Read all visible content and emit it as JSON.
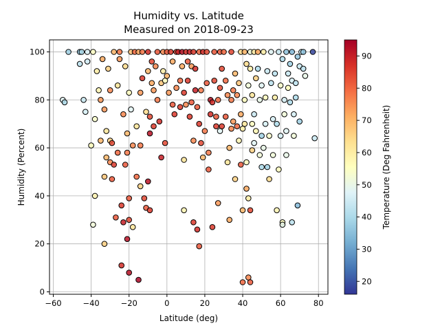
{
  "chart_data": {
    "type": "scatter",
    "title": "Humidity vs. Latitude",
    "subtitle": "Measured on 2018-09-23",
    "xlabel": "Latitude (deg)",
    "ylabel": "Humidity (Percent)",
    "xlim": [
      -62,
      85
    ],
    "ylim": [
      -1,
      105
    ],
    "xticks": [
      -60,
      -40,
      -20,
      0,
      20,
      40,
      60,
      80
    ],
    "yticks": [
      0,
      20,
      40,
      60,
      80,
      100
    ],
    "grid": true,
    "colorbar": {
      "label": "Temperature (Deg Fahrenheit)",
      "colormap": "RdYlBu_r",
      "range": [
        16,
        95
      ],
      "ticks": [
        20,
        30,
        40,
        50,
        60,
        70,
        80,
        90
      ]
    },
    "points": [
      [
        -55,
        80,
        48
      ],
      [
        -54,
        79,
        40
      ],
      [
        -52,
        100,
        38
      ],
      [
        -46,
        100,
        36
      ],
      [
        -46,
        95,
        42
      ],
      [
        -45,
        100,
        40
      ],
      [
        -44,
        80,
        44
      ],
      [
        -43,
        75,
        46
      ],
      [
        -42,
        96,
        45
      ],
      [
        -42,
        100,
        47
      ],
      [
        -40,
        61,
        56
      ],
      [
        -39,
        28,
        52
      ],
      [
        -39,
        100,
        55
      ],
      [
        -38,
        40,
        58
      ],
      [
        -38,
        72,
        54
      ],
      [
        -37,
        92,
        60
      ],
      [
        -36,
        84,
        58
      ],
      [
        -35,
        63,
        70
      ],
      [
        -35,
        80,
        74
      ],
      [
        -34,
        97,
        72
      ],
      [
        -33,
        20,
        66
      ],
      [
        -33,
        48,
        68
      ],
      [
        -33,
        76,
        74
      ],
      [
        -32,
        56,
        70
      ],
      [
        -32,
        67,
        62
      ],
      [
        -31,
        93,
        66
      ],
      [
        -30,
        54,
        76
      ],
      [
        -30,
        63,
        66
      ],
      [
        -30,
        84,
        76
      ],
      [
        -29,
        47,
        82
      ],
      [
        -29,
        62,
        84
      ],
      [
        -28,
        53,
        86
      ],
      [
        -28,
        100,
        70
      ],
      [
        -27,
        31,
        82
      ],
      [
        -26,
        58,
        80
      ],
      [
        -26,
        86,
        62
      ],
      [
        -25,
        97,
        74
      ],
      [
        -25,
        100,
        78
      ],
      [
        -24,
        36,
        86
      ],
      [
        -24,
        11,
        88
      ],
      [
        -23,
        29,
        90
      ],
      [
        -23,
        74,
        76
      ],
      [
        -22,
        53,
        82
      ],
      [
        -22,
        94,
        64
      ],
      [
        -21,
        22,
        92
      ],
      [
        -21,
        58,
        78
      ],
      [
        -21,
        66,
        70
      ],
      [
        -20,
        30,
        84
      ],
      [
        -20,
        8,
        92
      ],
      [
        -20,
        39,
        82
      ],
      [
        -20,
        83,
        56
      ],
      [
        -19,
        76,
        48
      ],
      [
        -19,
        100,
        68
      ],
      [
        -18,
        61,
        76
      ],
      [
        -18,
        27,
        62
      ],
      [
        -17,
        100,
        80
      ],
      [
        -16,
        48,
        80
      ],
      [
        -16,
        69,
        62
      ],
      [
        -15,
        100,
        72
      ],
      [
        -15,
        5,
        94
      ],
      [
        -14,
        44,
        66
      ],
      [
        -14,
        61,
        78
      ],
      [
        -14,
        83,
        74
      ],
      [
        -13,
        89,
        86
      ],
      [
        -13,
        100,
        78
      ],
      [
        -12,
        39,
        84
      ],
      [
        -11,
        35,
        82
      ],
      [
        -11,
        75,
        64
      ],
      [
        -10,
        46,
        92
      ],
      [
        -10,
        92,
        70
      ],
      [
        -10,
        100,
        88
      ],
      [
        -9,
        34,
        86
      ],
      [
        -9,
        66,
        92
      ],
      [
        -9,
        73,
        84
      ],
      [
        -8,
        87,
        72
      ],
      [
        -8,
        96,
        84
      ],
      [
        -7,
        69,
        86
      ],
      [
        -7,
        84,
        74
      ],
      [
        -6,
        94,
        76
      ],
      [
        -5,
        80,
        78
      ],
      [
        -5,
        100,
        82
      ],
      [
        -4,
        71,
        88
      ],
      [
        -3,
        56,
        90
      ],
      [
        -3,
        87,
        68
      ],
      [
        -2,
        92,
        60
      ],
      [
        -2,
        100,
        76
      ],
      [
        -1,
        88,
        56
      ],
      [
        -1,
        62,
        84
      ],
      [
        0,
        90,
        70
      ],
      [
        0,
        100,
        82
      ],
      [
        1,
        83,
        74
      ],
      [
        2,
        100,
        86
      ],
      [
        3,
        78,
        82
      ],
      [
        3,
        96,
        72
      ],
      [
        4,
        74,
        86
      ],
      [
        5,
        100,
        84
      ],
      [
        5,
        85,
        76
      ],
      [
        6,
        100,
        90
      ],
      [
        7,
        77,
        86
      ],
      [
        7,
        88,
        80
      ],
      [
        8,
        94,
        72
      ],
      [
        8,
        100,
        92
      ],
      [
        9,
        55,
        62
      ],
      [
        9,
        34,
        58
      ],
      [
        9,
        83,
        86
      ],
      [
        10,
        100,
        88
      ],
      [
        10,
        78,
        76
      ],
      [
        11,
        96,
        82
      ],
      [
        11,
        88,
        86
      ],
      [
        12,
        100,
        90
      ],
      [
        12,
        73,
        86
      ],
      [
        13,
        79,
        82
      ],
      [
        13,
        94,
        74
      ],
      [
        14,
        63,
        76
      ],
      [
        14,
        29,
        86
      ],
      [
        14,
        100,
        86
      ],
      [
        15,
        84,
        90
      ],
      [
        15,
        93,
        88
      ],
      [
        16,
        77,
        82
      ],
      [
        16,
        26,
        88
      ],
      [
        17,
        19,
        82
      ],
      [
        17,
        70,
        86
      ],
      [
        17,
        100,
        80
      ],
      [
        18,
        62,
        84
      ],
      [
        18,
        84,
        78
      ],
      [
        19,
        56,
        70
      ],
      [
        19,
        100,
        88
      ],
      [
        20,
        67,
        78
      ],
      [
        21,
        87,
        82
      ],
      [
        21,
        100,
        84
      ],
      [
        22,
        58,
        78
      ],
      [
        22,
        51,
        82
      ],
      [
        23,
        74,
        88
      ],
      [
        23,
        80,
        92
      ],
      [
        24,
        79,
        88
      ],
      [
        24,
        27,
        86
      ],
      [
        25,
        88,
        84
      ],
      [
        25,
        100,
        82
      ],
      [
        26,
        69,
        86
      ],
      [
        26,
        73,
        82
      ],
      [
        27,
        37,
        74
      ],
      [
        27,
        80,
        80
      ],
      [
        28,
        85,
        84
      ],
      [
        28,
        67,
        48
      ],
      [
        28,
        100,
        82
      ],
      [
        29,
        69,
        86
      ],
      [
        29,
        93,
        84
      ],
      [
        30,
        100,
        80
      ],
      [
        31,
        73,
        82
      ],
      [
        31,
        88,
        80
      ],
      [
        32,
        54,
        62
      ],
      [
        32,
        82,
        76
      ],
      [
        33,
        30,
        72
      ],
      [
        33,
        60,
        70
      ],
      [
        34,
        68,
        76
      ],
      [
        34,
        80,
        78
      ],
      [
        34,
        100,
        84
      ],
      [
        35,
        71,
        74
      ],
      [
        35,
        84,
        78
      ],
      [
        36,
        47,
        66
      ],
      [
        36,
        91,
        70
      ],
      [
        37,
        69,
        80
      ],
      [
        37,
        82,
        76
      ],
      [
        38,
        63,
        58
      ],
      [
        38,
        87,
        68
      ],
      [
        39,
        74,
        72
      ],
      [
        39,
        53,
        82
      ],
      [
        39,
        100,
        64
      ],
      [
        40,
        4,
        80
      ],
      [
        40,
        34,
        70
      ],
      [
        40,
        68,
        60
      ],
      [
        41,
        80,
        56
      ],
      [
        41,
        70,
        62
      ],
      [
        41,
        100,
        70
      ],
      [
        42,
        43,
        72
      ],
      [
        42,
        95,
        64
      ],
      [
        42,
        54,
        56
      ],
      [
        43,
        39,
        60
      ],
      [
        43,
        6,
        76
      ],
      [
        43,
        86,
        52
      ],
      [
        44,
        34,
        84
      ],
      [
        44,
        4,
        82
      ],
      [
        44,
        93,
        60
      ],
      [
        44,
        100,
        52
      ],
      [
        45,
        70,
        56
      ],
      [
        45,
        59,
        66
      ],
      [
        45,
        82,
        62
      ],
      [
        46,
        62,
        48
      ],
      [
        46,
        74,
        44
      ],
      [
        46,
        100,
        60
      ],
      [
        47,
        67,
        58
      ],
      [
        47,
        89,
        66
      ],
      [
        48,
        93,
        40
      ],
      [
        48,
        100,
        72
      ],
      [
        49,
        57,
        52
      ],
      [
        49,
        80,
        50
      ],
      [
        50,
        65,
        38
      ],
      [
        50,
        86,
        48
      ],
      [
        50,
        52,
        40
      ],
      [
        51,
        100,
        60
      ],
      [
        51,
        60,
        50
      ],
      [
        52,
        70,
        46
      ],
      [
        52,
        81,
        56
      ],
      [
        53,
        92,
        44
      ],
      [
        53,
        52,
        38
      ],
      [
        54,
        47,
        64
      ],
      [
        54,
        65,
        54
      ],
      [
        55,
        87,
        42
      ],
      [
        55,
        100,
        48
      ],
      [
        56,
        57,
        52
      ],
      [
        56,
        72,
        46
      ],
      [
        57,
        81,
        60
      ],
      [
        57,
        91,
        42
      ],
      [
        58,
        70,
        40
      ],
      [
        58,
        34,
        58
      ],
      [
        59,
        51,
        56
      ],
      [
        59,
        100,
        44
      ],
      [
        60,
        86,
        54
      ],
      [
        60,
        65,
        46
      ],
      [
        61,
        29,
        56
      ],
      [
        61,
        28,
        50
      ],
      [
        61,
        97,
        40
      ],
      [
        62,
        74,
        52
      ],
      [
        62,
        80,
        46
      ],
      [
        63,
        67,
        48
      ],
      [
        63,
        57,
        50
      ],
      [
        63,
        100,
        36
      ],
      [
        64,
        85,
        56
      ],
      [
        64,
        91,
        44
      ],
      [
        65,
        79,
        40
      ],
      [
        65,
        95,
        38
      ],
      [
        66,
        29,
        42
      ],
      [
        66,
        88,
        46
      ],
      [
        66,
        100,
        34
      ],
      [
        67,
        74,
        46
      ],
      [
        67,
        65,
        52
      ],
      [
        68,
        87,
        42
      ],
      [
        68,
        81,
        40
      ],
      [
        69,
        36,
        34
      ],
      [
        69,
        98,
        36
      ],
      [
        70,
        71,
        38
      ],
      [
        70,
        94,
        44
      ],
      [
        71,
        100,
        44
      ],
      [
        72,
        93,
        42
      ],
      [
        72,
        100,
        36
      ],
      [
        73,
        90,
        50
      ],
      [
        77,
        100,
        18
      ],
      [
        78,
        64,
        44
      ]
    ]
  }
}
